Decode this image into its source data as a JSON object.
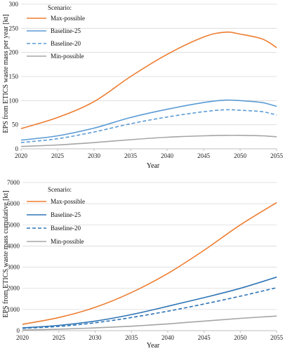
{
  "chart_data": [
    {
      "type": "line",
      "ylabel": "EPS from ETICS waste mass per year [kt]",
      "xlabel": "Year",
      "xlim": [
        2020,
        2055
      ],
      "ylim": [
        0,
        300
      ],
      "xticks": [
        "2020",
        "2025",
        "2030",
        "2035",
        "2040",
        "2045",
        "2050",
        "2055"
      ],
      "yticks": [
        "0",
        "50",
        "100",
        "150",
        "200",
        "250",
        "300"
      ],
      "grid": "horizontal",
      "legend": {
        "title": "Scenario:",
        "placement": "top-left"
      },
      "x": [
        2020,
        2025,
        2030,
        2035,
        2040,
        2045,
        2048,
        2050,
        2053,
        2055
      ],
      "series": [
        {
          "name": "Max-possible",
          "color": "#ED7D31",
          "dash": "solid",
          "values": [
            42,
            65,
            98,
            150,
            196,
            232,
            242,
            238,
            228,
            210
          ]
        },
        {
          "name": "Baseline-25",
          "color": "#5B9BD5",
          "dash": "solid",
          "values": [
            18,
            27,
            43,
            65,
            82,
            96,
            101,
            100,
            96,
            88
          ]
        },
        {
          "name": "Baseline-20",
          "color": "#5B9BD5",
          "dash": "dashed",
          "values": [
            13,
            21,
            35,
            52,
            66,
            77,
            81,
            80,
            77,
            70
          ]
        },
        {
          "name": "Min-possible",
          "color": "#A5A5A5",
          "dash": "solid",
          "values": [
            5,
            8,
            13,
            19,
            24,
            27,
            28,
            28,
            27,
            25
          ]
        }
      ]
    },
    {
      "type": "line",
      "ylabel": "EPS from ETICS waste mass cumulative [kt]",
      "xlabel": "Year",
      "xlim": [
        2020,
        2055
      ],
      "ylim": [
        0,
        7000
      ],
      "xticks": [
        "2020",
        "2025",
        "2030",
        "2035",
        "2040",
        "2045",
        "2050",
        "2055"
      ],
      "yticks": [
        "0",
        "1000",
        "2000",
        "3000",
        "4000",
        "5000",
        "6000",
        "7000"
      ],
      "grid": "horizontal",
      "legend": {
        "title": "Scenario:",
        "placement": "top-left"
      },
      "x": [
        2020,
        2025,
        2030,
        2035,
        2040,
        2045,
        2050,
        2055
      ],
      "series": [
        {
          "name": "Max-possible",
          "color": "#ED7D31",
          "dash": "solid",
          "values": [
            300,
            620,
            1100,
            1800,
            2700,
            3800,
            5000,
            6050
          ]
        },
        {
          "name": "Baseline-25",
          "color": "#2E75B6",
          "dash": "solid",
          "values": [
            130,
            250,
            450,
            760,
            1150,
            1560,
            2000,
            2530
          ]
        },
        {
          "name": "Baseline-20",
          "color": "#2E75B6",
          "dash": "dashed",
          "values": [
            110,
            200,
            370,
            620,
            920,
            1260,
            1630,
            2030
          ]
        },
        {
          "name": "Min-possible",
          "color": "#A5A5A5",
          "dash": "solid",
          "values": [
            30,
            70,
            130,
            210,
            320,
            450,
            580,
            690
          ]
        }
      ]
    }
  ]
}
